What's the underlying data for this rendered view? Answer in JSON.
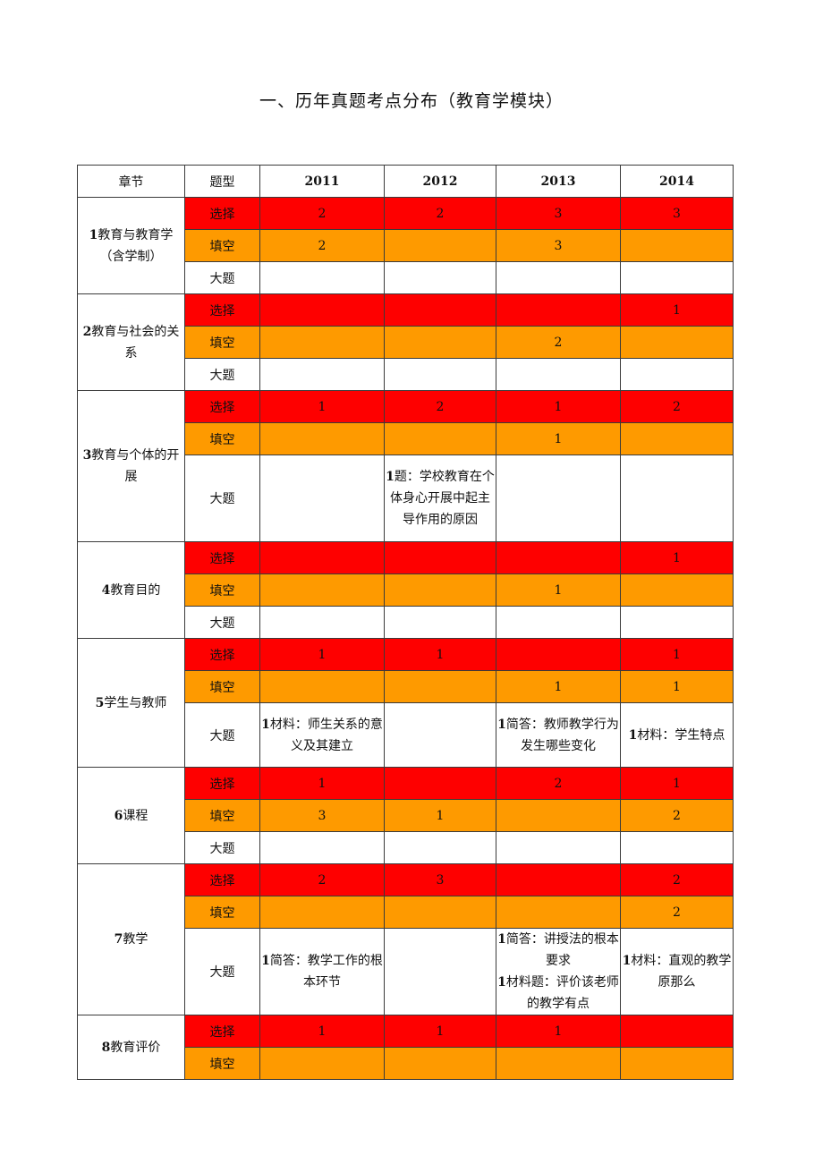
{
  "title": "一、历年真题考点分布（教育学模块）",
  "colors": {
    "xuanze_fill": "#fe0000",
    "tiankong_fill": "#fe9a00"
  },
  "header": {
    "chapter": "章节",
    "type": "题型",
    "y2011": "2011",
    "y2012": "2012",
    "y2013": "2013",
    "y2014": "2014"
  },
  "types": {
    "xuanze": "选择",
    "tiankong": "填空",
    "dati": "大题"
  },
  "chapters": {
    "c1": {
      "name": "1教育与教育学（含学制）",
      "xuanze": [
        "2",
        "2",
        "3",
        "3"
      ],
      "tiankong": [
        "2",
        "",
        "3",
        ""
      ]
    },
    "c2": {
      "name": "2教育与社会的关系",
      "xuanze": [
        "",
        "",
        "",
        "1"
      ],
      "tiankong": [
        "",
        "",
        "2",
        ""
      ]
    },
    "c3": {
      "name": "3教育与个体的开展",
      "xuanze": [
        "1",
        "2",
        "1",
        "2"
      ],
      "tiankong": [
        "",
        "",
        "1",
        ""
      ],
      "dati_2012": "1题：学校教育在个体身心开展中起主导作用的原因"
    },
    "c4": {
      "name": "4教育目的",
      "xuanze": [
        "",
        "",
        "",
        "1"
      ],
      "tiankong": [
        "",
        "",
        "1",
        ""
      ]
    },
    "c5": {
      "name": "5学生与教师",
      "xuanze": [
        "1",
        "1",
        "",
        "1"
      ],
      "tiankong": [
        "",
        "",
        "1",
        "1"
      ],
      "dati_2011": "1材料：师生关系的意义及其建立",
      "dati_2013": "1简答：教师教学行为发生哪些变化",
      "dati_2014": "1材料：学生特点"
    },
    "c6": {
      "name": "6课程",
      "xuanze": [
        "1",
        "",
        "2",
        "1"
      ],
      "tiankong": [
        "3",
        "1",
        "",
        "2"
      ]
    },
    "c7": {
      "name": "7教学",
      "xuanze": [
        "2",
        "3",
        "",
        "2"
      ],
      "tiankong": [
        "",
        "",
        "",
        "2"
      ],
      "dati_2011": "1简答：教学工作的根本环节",
      "dati_2013_a": "1简答：讲授法的根本要求",
      "dati_2013_b": "1材料题：评价该老师的教学有点",
      "dati_2014": "1材料：直观的教学原那么"
    },
    "c8": {
      "name": "8教育评价",
      "xuanze": [
        "1",
        "1",
        "1",
        ""
      ],
      "tiankong": [
        "",
        "",
        "",
        ""
      ]
    }
  }
}
